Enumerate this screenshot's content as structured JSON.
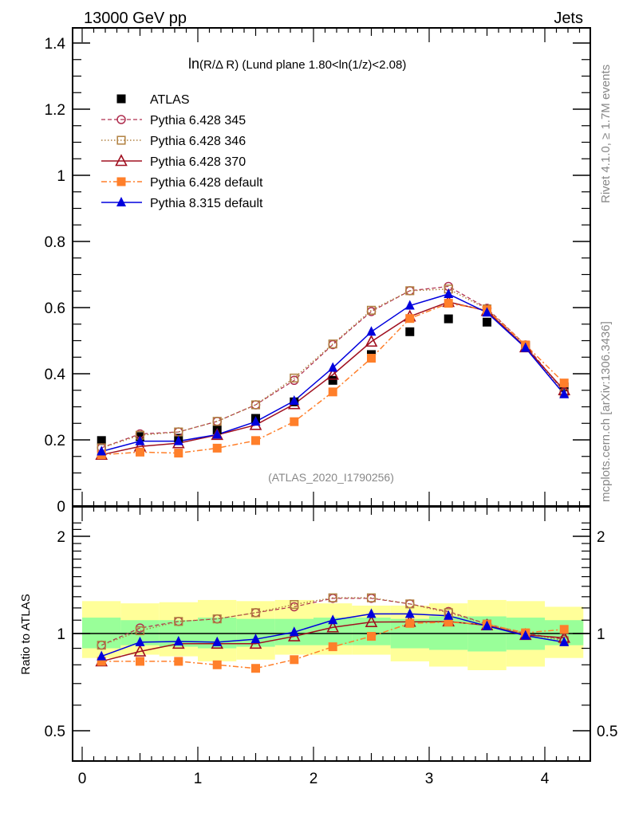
{
  "header": {
    "left": "13000 GeV pp",
    "right": "Jets"
  },
  "side_labels": {
    "rivet": "Rivet 4.1.0, ≥ 1.7M events",
    "mcplots": "mcplots.cern.ch [arXiv:1306.3436]"
  },
  "chart_data": [
    {
      "type": "scatter",
      "panel": "main",
      "title": "ln(R/Δ R) (Lund plane 1.80<ln(1/z)<2.08)",
      "title_prefix": "ln",
      "title_paren": "(R/Δ R)",
      "title_rest": " (Lund plane 1.80<ln(1/z)<2.08)",
      "watermark": "(ATLAS_2020_I1790256)",
      "xlabel": "",
      "ylabel": "",
      "xlim": [
        -0.05,
        4.4
      ],
      "ylim": [
        0,
        1.45
      ],
      "yticks": [
        0,
        0.2,
        0.4,
        0.6,
        0.8,
        1,
        1.2,
        1.4
      ],
      "ytick_labels": [
        "0",
        "0.2",
        "0.4",
        "0.6",
        "0.8",
        "1",
        "1.2",
        "1.4"
      ],
      "legend_position": "top-left",
      "x": [
        0.167,
        0.5,
        0.833,
        1.167,
        1.5,
        1.833,
        2.167,
        2.5,
        2.833,
        3.167,
        3.5,
        3.833,
        4.167
      ],
      "series": [
        {
          "name": "ATLAS",
          "color": "#000000",
          "marker": "filled-square",
          "line": "none",
          "values": [
            0.198,
            0.21,
            0.205,
            0.23,
            0.265,
            0.315,
            0.38,
            0.458,
            0.527,
            0.566,
            0.556,
            0.485,
            0.36
          ]
        },
        {
          "name": "Pythia 6.428 345",
          "color": "#b03050",
          "marker": "open-circle",
          "line": "dashed",
          "values": [
            0.176,
            0.218,
            0.224,
            0.256,
            0.306,
            0.38,
            0.488,
            0.588,
            0.651,
            0.664,
            0.598,
            0.487,
            0.345
          ]
        },
        {
          "name": "Pythia 6.428 346",
          "color": "#b08040",
          "marker": "open-square",
          "line": "dotted",
          "values": [
            0.176,
            0.214,
            0.224,
            0.256,
            0.306,
            0.387,
            0.49,
            0.592,
            0.651,
            0.656,
            0.596,
            0.485,
            0.34
          ]
        },
        {
          "name": "Pythia 6.428 370",
          "color": "#a01020",
          "marker": "open-triangle",
          "line": "solid",
          "values": [
            0.155,
            0.18,
            0.19,
            0.215,
            0.245,
            0.308,
            0.397,
            0.497,
            0.573,
            0.617,
            0.59,
            0.48,
            0.35
          ]
        },
        {
          "name": "Pythia 6.428 default",
          "color": "#ff7f2a",
          "marker": "filled-square",
          "line": "dash-dot",
          "values": [
            0.155,
            0.163,
            0.16,
            0.175,
            0.198,
            0.255,
            0.345,
            0.447,
            0.567,
            0.613,
            0.593,
            0.487,
            0.372
          ]
        },
        {
          "name": "Pythia 8.315 default",
          "color": "#0000dd",
          "marker": "filled-triangle",
          "line": "solid",
          "values": [
            0.165,
            0.196,
            0.196,
            0.216,
            0.255,
            0.318,
            0.418,
            0.527,
            0.606,
            0.641,
            0.585,
            0.478,
            0.338
          ]
        }
      ]
    },
    {
      "type": "scatter",
      "panel": "ratio",
      "ylabel": "Ratio to ATLAS",
      "xlabel": "",
      "yscale": "log",
      "xlim": [
        -0.05,
        4.4
      ],
      "ylim": [
        0.37,
        2.3
      ],
      "yticks": [
        0.5,
        1,
        2
      ],
      "ytick_labels": [
        "0.5",
        "1",
        "2"
      ],
      "xticks": [
        0,
        1,
        2,
        3,
        4
      ],
      "xtick_labels": [
        "0",
        "1",
        "2",
        "3",
        "4"
      ],
      "x": [
        0.167,
        0.5,
        0.833,
        1.167,
        1.5,
        1.833,
        2.167,
        2.5,
        2.833,
        3.167,
        3.5,
        3.833,
        4.167
      ],
      "bands": {
        "edges": [
          0,
          0.333,
          0.667,
          1.0,
          1.333,
          1.667,
          2.0,
          2.333,
          2.667,
          3.0,
          3.333,
          3.667,
          4.0,
          4.333
        ],
        "inner_color": "#99ff99",
        "outer_color": "#ffff99",
        "inner_low": [
          0.9,
          0.92,
          0.91,
          0.9,
          0.91,
          0.92,
          0.92,
          0.92,
          0.9,
          0.89,
          0.88,
          0.89,
          0.92
        ],
        "inner_high": [
          1.12,
          1.1,
          1.1,
          1.12,
          1.11,
          1.11,
          1.12,
          1.12,
          1.11,
          1.13,
          1.13,
          1.12,
          1.1
        ],
        "outer_low": [
          0.84,
          0.86,
          0.85,
          0.82,
          0.83,
          0.86,
          0.86,
          0.86,
          0.82,
          0.79,
          0.77,
          0.79,
          0.84
        ],
        "outer_high": [
          1.26,
          1.24,
          1.25,
          1.27,
          1.26,
          1.27,
          1.24,
          1.22,
          1.22,
          1.24,
          1.27,
          1.26,
          1.21
        ]
      },
      "series": [
        {
          "name": "Pythia 6.428 345",
          "values": [
            0.92,
            1.04,
            1.09,
            1.11,
            1.16,
            1.21,
            1.285,
            1.285,
            1.235,
            1.17,
            1.07,
            1.0,
            0.96
          ]
        },
        {
          "name": "Pythia 6.428 346",
          "values": [
            0.92,
            1.02,
            1.09,
            1.11,
            1.16,
            1.23,
            1.29,
            1.29,
            1.235,
            1.16,
            1.07,
            1.0,
            0.95
          ]
        },
        {
          "name": "Pythia 6.428 370",
          "values": [
            0.82,
            0.88,
            0.93,
            0.93,
            0.93,
            0.98,
            1.045,
            1.085,
            1.087,
            1.09,
            1.06,
            0.99,
            0.97
          ]
        },
        {
          "name": "Pythia 6.428 default",
          "values": [
            0.82,
            0.82,
            0.82,
            0.8,
            0.78,
            0.83,
            0.91,
            0.98,
            1.075,
            1.085,
            1.067,
            1.005,
            1.03
          ]
        },
        {
          "name": "Pythia 8.315 default",
          "values": [
            0.85,
            0.94,
            0.945,
            0.94,
            0.96,
            1.01,
            1.1,
            1.15,
            1.15,
            1.135,
            1.055,
            0.985,
            0.94
          ]
        }
      ]
    }
  ]
}
